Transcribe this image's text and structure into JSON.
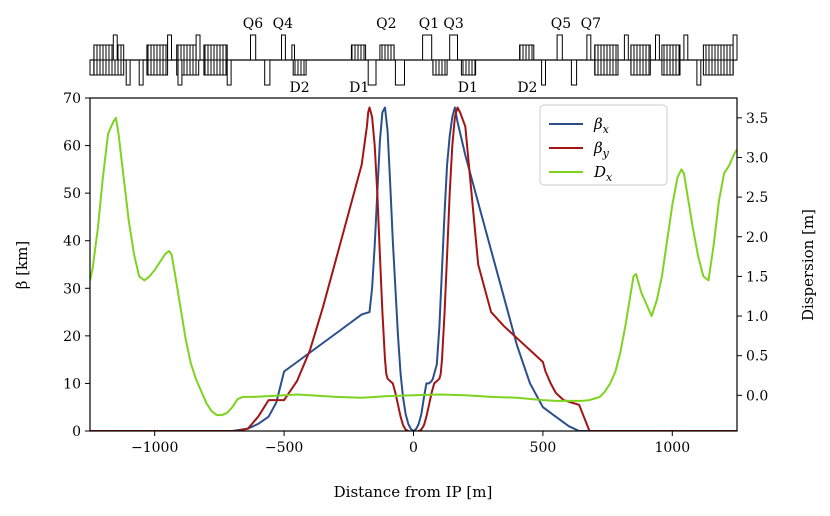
{
  "chart_data": {
    "type": "line",
    "title": "",
    "xlabel": "Distance from IP [m]",
    "ylabel_left": "β [km]",
    "ylabel_right": "Dispersion [m]",
    "xlim": [
      -1250,
      1250
    ],
    "ylim_left": [
      0,
      70
    ],
    "ylim_right": [
      -0.45,
      3.75
    ],
    "x_ticks": [
      -1000,
      -500,
      0,
      500,
      1000
    ],
    "x_tick_labels": [
      "−1000",
      "−500",
      "0",
      "500",
      "1000"
    ],
    "y_left_ticks": [
      0,
      10,
      20,
      30,
      40,
      50,
      60,
      70
    ],
    "y_left_tick_labels": [
      "0",
      "10",
      "20",
      "30",
      "40",
      "50",
      "60",
      "70"
    ],
    "y_right_ticks": [
      0.0,
      0.5,
      1.0,
      1.5,
      2.0,
      2.5,
      3.0,
      3.5
    ],
    "y_right_tick_labels": [
      "0.0",
      "0.5",
      "1.0",
      "1.5",
      "2.0",
      "2.5",
      "3.0",
      "3.5"
    ],
    "legend_position": "top-right",
    "series": [
      {
        "name": "βx",
        "legend_label": "β",
        "legend_sub": "x",
        "axis": "left",
        "color": "#2b4f8c",
        "x": [
          -1250,
          -700,
          -640,
          -600,
          -560,
          -530,
          -500,
          -400,
          -300,
          -200,
          -170,
          -160,
          -150,
          -140,
          -130,
          -120,
          -110,
          -100,
          -90,
          -80,
          -70,
          -60,
          -50,
          -40,
          -30,
          -20,
          -10,
          0,
          10,
          20,
          30,
          40,
          50,
          60,
          70,
          75,
          80,
          90,
          100,
          110,
          120,
          130,
          140,
          150,
          160,
          170,
          200,
          250,
          300,
          350,
          400,
          450,
          500,
          550,
          600,
          640,
          650,
          700,
          1250
        ],
        "y": [
          0,
          0,
          0.5,
          1.5,
          3,
          6,
          12.5,
          16.5,
          20.5,
          24.5,
          25,
          30,
          39,
          50,
          61,
          67,
          68,
          63,
          52,
          40,
          30,
          20,
          12,
          7,
          3.5,
          1.5,
          0.4,
          0,
          0.4,
          1.5,
          3.5,
          7,
          10,
          10,
          10.5,
          11,
          12,
          14,
          22,
          34,
          46,
          56,
          62,
          66,
          68,
          65,
          58,
          48,
          38,
          28,
          18,
          10,
          5,
          3,
          1,
          0,
          0,
          0,
          0
        ]
      },
      {
        "name": "βy",
        "legend_label": "β",
        "legend_sub": "y",
        "axis": "left",
        "color": "#a31515",
        "x": [
          -1250,
          -680,
          -640,
          -600,
          -560,
          -530,
          -500,
          -450,
          -400,
          -350,
          -300,
          -250,
          -200,
          -180,
          -175,
          -170,
          -160,
          -150,
          -140,
          -130,
          -120,
          -110,
          -105,
          -100,
          -90,
          -80,
          -70,
          -60,
          -50,
          -40,
          -30,
          -20,
          -10,
          0,
          10,
          20,
          30,
          40,
          50,
          60,
          70,
          80,
          90,
          100,
          105,
          110,
          120,
          130,
          140,
          150,
          160,
          170,
          180,
          200,
          250,
          300,
          350,
          400,
          450,
          500,
          510,
          530,
          550,
          580,
          610,
          640,
          680,
          1250
        ],
        "y": [
          0,
          0,
          0.5,
          3,
          6.5,
          6.5,
          6.5,
          10.5,
          17,
          26,
          36,
          46,
          56,
          64,
          67,
          68,
          66,
          60,
          50,
          37,
          25,
          15,
          12,
          11,
          10.5,
          10,
          8,
          5.5,
          3,
          1.2,
          0.3,
          0,
          -0.2,
          -0.3,
          -0.2,
          0,
          0.3,
          1.2,
          3,
          5.5,
          8,
          10,
          10.5,
          11,
          12,
          15,
          25,
          37,
          50,
          60,
          66,
          68,
          67,
          64,
          35,
          25,
          22,
          19.5,
          17,
          14.5,
          12.5,
          10,
          8,
          6.5,
          6,
          5.5,
          0,
          0
        ]
      },
      {
        "name": "Dx",
        "legend_label": "D",
        "legend_sub": "x",
        "axis": "right",
        "color": "#7ed321",
        "x": [
          -1250,
          -1240,
          -1220,
          -1200,
          -1180,
          -1160,
          -1150,
          -1140,
          -1120,
          -1100,
          -1080,
          -1060,
          -1040,
          -1020,
          -1000,
          -980,
          -960,
          -945,
          -935,
          -920,
          -900,
          -880,
          -860,
          -840,
          -820,
          -800,
          -780,
          -760,
          -740,
          -720,
          -700,
          -680,
          -660,
          -620,
          -560,
          -500,
          -450,
          -400,
          -300,
          -200,
          -100,
          0,
          100,
          200,
          300,
          400,
          500,
          550,
          600,
          650,
          680,
          700,
          720,
          740,
          760,
          780,
          800,
          820,
          840,
          850,
          860,
          880,
          900,
          920,
          940,
          960,
          980,
          1000,
          1020,
          1035,
          1045,
          1060,
          1080,
          1100,
          1120,
          1140,
          1160,
          1180,
          1200,
          1220,
          1240,
          1250
        ],
        "y": [
          1.45,
          1.6,
          2.1,
          2.75,
          3.3,
          3.45,
          3.5,
          3.3,
          2.75,
          2.2,
          1.78,
          1.5,
          1.45,
          1.5,
          1.58,
          1.68,
          1.78,
          1.82,
          1.78,
          1.5,
          1.1,
          0.7,
          0.4,
          0.2,
          0.05,
          -0.1,
          -0.2,
          -0.25,
          -0.25,
          -0.22,
          -0.15,
          -0.05,
          -0.02,
          -0.02,
          -0.01,
          0.0,
          0.01,
          0.0,
          -0.02,
          -0.03,
          -0.01,
          0.0,
          0.01,
          0.0,
          -0.02,
          -0.03,
          -0.06,
          -0.07,
          -0.07,
          -0.07,
          -0.06,
          -0.04,
          -0.02,
          0.05,
          0.15,
          0.3,
          0.55,
          0.9,
          1.3,
          1.5,
          1.53,
          1.3,
          1.15,
          1.0,
          1.2,
          1.5,
          1.95,
          2.4,
          2.75,
          2.85,
          2.8,
          2.5,
          2.1,
          1.75,
          1.5,
          1.45,
          1.9,
          2.45,
          2.8,
          2.9,
          3.05,
          3.1
        ]
      }
    ],
    "magnet_labels": [
      {
        "name": "Q6",
        "x": -620,
        "side": "top"
      },
      {
        "name": "Q4",
        "x": -505,
        "side": "top"
      },
      {
        "name": "Q2",
        "x": -105,
        "side": "top"
      },
      {
        "name": "Q1",
        "x": 60,
        "side": "top"
      },
      {
        "name": "Q3",
        "x": 155,
        "side": "top"
      },
      {
        "name": "Q5",
        "x": 570,
        "side": "top"
      },
      {
        "name": "Q7",
        "x": 685,
        "side": "top"
      },
      {
        "name": "D2",
        "x": -440,
        "side": "bottom"
      },
      {
        "name": "D1",
        "x": -210,
        "side": "bottom"
      },
      {
        "name": "D1",
        "x": 210,
        "side": "bottom"
      },
      {
        "name": "D2",
        "x": 440,
        "side": "bottom"
      }
    ],
    "lattice_elements": [
      {
        "x0": -1250,
        "x1": -1235,
        "kind": "dipole-low",
        "hatched": false
      },
      {
        "x0": -1235,
        "x1": -1120,
        "kind": "dipole-low",
        "hatched": true
      },
      {
        "x0": -1235,
        "x1": -1120,
        "kind": "dipole-high",
        "hatched": true
      },
      {
        "x0": -1160,
        "x1": -1145,
        "kind": "quad-high",
        "hatched": false
      },
      {
        "x0": -1110,
        "x1": -1095,
        "kind": "quad-low",
        "hatched": false
      },
      {
        "x0": -1060,
        "x1": -1045,
        "kind": "quad-low",
        "hatched": false
      },
      {
        "x0": -1030,
        "x1": -950,
        "kind": "dipole-high",
        "hatched": true
      },
      {
        "x0": -1030,
        "x1": -950,
        "kind": "dipole-low",
        "hatched": true
      },
      {
        "x0": -950,
        "x1": -935,
        "kind": "quad-high",
        "hatched": false
      },
      {
        "x0": -915,
        "x1": -830,
        "kind": "dipole-high",
        "hatched": true
      },
      {
        "x0": -915,
        "x1": -830,
        "kind": "dipole-low",
        "hatched": true
      },
      {
        "x0": -910,
        "x1": -895,
        "kind": "quad-low",
        "hatched": false
      },
      {
        "x0": -840,
        "x1": -825,
        "kind": "quad-high",
        "hatched": false
      },
      {
        "x0": -810,
        "x1": -720,
        "kind": "dipole-high",
        "hatched": true
      },
      {
        "x0": -810,
        "x1": -720,
        "kind": "dipole-low",
        "hatched": true
      },
      {
        "x0": -720,
        "x1": -705,
        "kind": "quad-low",
        "hatched": false
      },
      {
        "x0": -630,
        "x1": -610,
        "kind": "quad-high",
        "hatched": false
      },
      {
        "x0": -575,
        "x1": -555,
        "kind": "quad-low",
        "hatched": false
      },
      {
        "x0": -510,
        "x1": -495,
        "kind": "quad-high",
        "hatched": false
      },
      {
        "x0": -465,
        "x1": -415,
        "kind": "dipole-low",
        "hatched": true
      },
      {
        "x0": -470,
        "x1": -460,
        "kind": "dipole-high",
        "hatched": false
      },
      {
        "x0": -240,
        "x1": -185,
        "kind": "dipole-high",
        "hatched": true
      },
      {
        "x0": -175,
        "x1": -145,
        "kind": "quad-low",
        "hatched": false
      },
      {
        "x0": -130,
        "x1": -75,
        "kind": "dipole-high",
        "hatched": true
      },
      {
        "x0": -70,
        "x1": -35,
        "kind": "quad-low",
        "hatched": false
      },
      {
        "x0": 35,
        "x1": 70,
        "kind": "quad-high",
        "hatched": false
      },
      {
        "x0": 75,
        "x1": 130,
        "kind": "dipole-low",
        "hatched": true
      },
      {
        "x0": 140,
        "x1": 170,
        "kind": "quad-high",
        "hatched": false
      },
      {
        "x0": 185,
        "x1": 240,
        "kind": "dipole-low",
        "hatched": true
      },
      {
        "x0": 410,
        "x1": 465,
        "kind": "dipole-high",
        "hatched": true
      },
      {
        "x0": 495,
        "x1": 510,
        "kind": "quad-low",
        "hatched": false
      },
      {
        "x0": 555,
        "x1": 575,
        "kind": "quad-high",
        "hatched": false
      },
      {
        "x0": 610,
        "x1": 630,
        "kind": "quad-low",
        "hatched": false
      },
      {
        "x0": 670,
        "x1": 685,
        "kind": "quad-high",
        "hatched": false
      },
      {
        "x0": 700,
        "x1": 790,
        "kind": "dipole-low",
        "hatched": true
      },
      {
        "x0": 700,
        "x1": 790,
        "kind": "dipole-high",
        "hatched": true
      },
      {
        "x0": 815,
        "x1": 830,
        "kind": "quad-high",
        "hatched": false
      },
      {
        "x0": 840,
        "x1": 915,
        "kind": "dipole-high",
        "hatched": true
      },
      {
        "x0": 840,
        "x1": 915,
        "kind": "dipole-low",
        "hatched": true
      },
      {
        "x0": 935,
        "x1": 950,
        "kind": "quad-high",
        "hatched": false
      },
      {
        "x0": 960,
        "x1": 1030,
        "kind": "dipole-high",
        "hatched": true
      },
      {
        "x0": 960,
        "x1": 1030,
        "kind": "dipole-low",
        "hatched": true
      },
      {
        "x0": 1045,
        "x1": 1060,
        "kind": "quad-high",
        "hatched": false
      },
      {
        "x0": 1095,
        "x1": 1110,
        "kind": "quad-low",
        "hatched": false
      },
      {
        "x0": 1120,
        "x1": 1235,
        "kind": "dipole-high",
        "hatched": true
      },
      {
        "x0": 1120,
        "x1": 1235,
        "kind": "dipole-low",
        "hatched": true
      },
      {
        "x0": 1235,
        "x1": 1250,
        "kind": "quad-high",
        "hatched": false
      }
    ]
  }
}
